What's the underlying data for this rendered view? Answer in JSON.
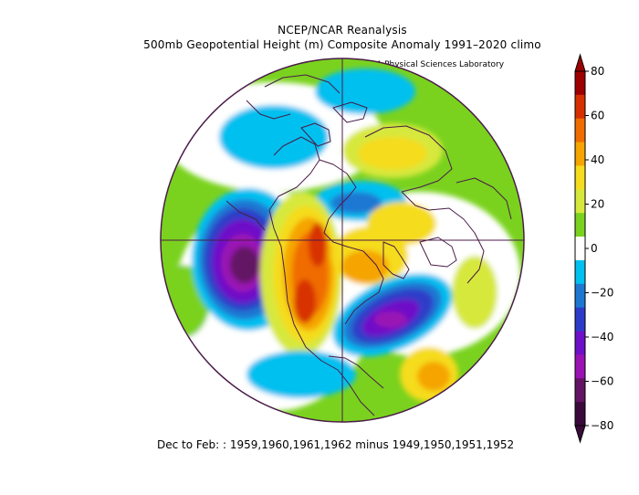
{
  "header": {
    "title_line1": "NCEP/NCAR Reanalysis",
    "title_line2": "500mb Geopotential Height (m) Composite Anomaly 1991–2020 climo",
    "credit": "NOAA Physical Sciences Laboratory"
  },
  "caption": "Dec to Feb: : 1959,1960,1961,1962 minus 1949,1950,1951,1952",
  "colorbar": {
    "labels": [
      "80",
      "60",
      "40",
      "20",
      "0",
      "−20",
      "−40",
      "−60",
      "−80"
    ],
    "colors_top_to_bottom": [
      "#9e0000",
      "#d73000",
      "#f06c00",
      "#f5a400",
      "#f5dc1e",
      "#d7e83c",
      "#7ad21e",
      "#ffffff",
      "#00c0f0",
      "#1e78d2",
      "#2d3cc8",
      "#6e10c8",
      "#9a12b4",
      "#641464",
      "#3a0a3a"
    ]
  },
  "map": {
    "projection": "north-polar-stereographic",
    "ocean_color": "#ffffff",
    "coast_color": "#4a1c48"
  }
}
